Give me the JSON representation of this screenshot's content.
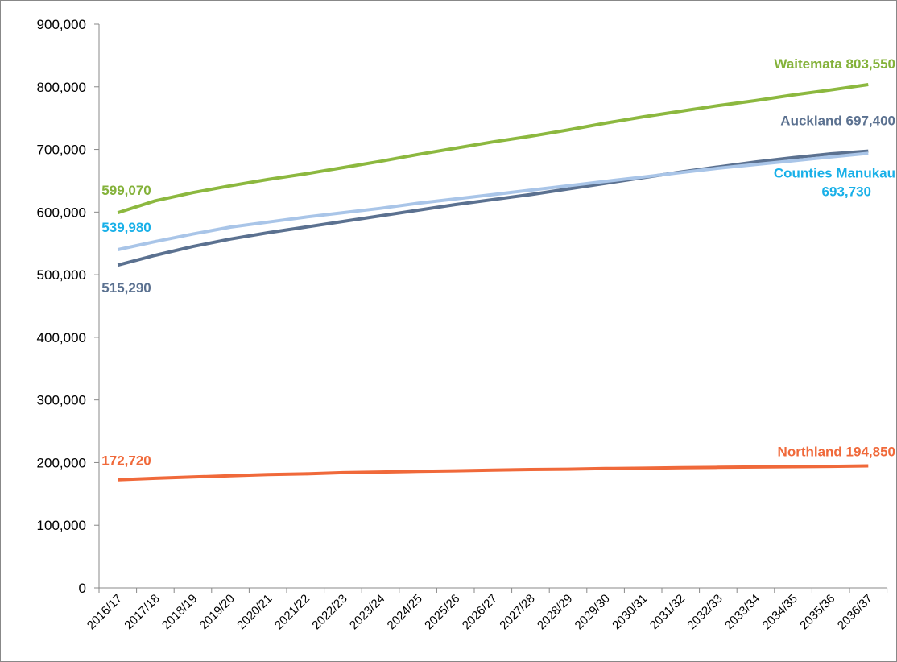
{
  "chart_data": {
    "type": "line",
    "categories": [
      "2016/17",
      "2017/18",
      "2018/19",
      "2019/20",
      "2020/21",
      "2021/22",
      "2022/23",
      "2023/24",
      "2024/25",
      "2025/26",
      "2026/27",
      "2027/28",
      "2028/29",
      "2029/30",
      "2030/31",
      "2031/32",
      "2032/33",
      "2033/34",
      "2034/35",
      "2035/36",
      "2036/37"
    ],
    "ylim": [
      0,
      900000
    ],
    "yticks": [
      0,
      {
        "value": 100000,
        "label": "100,000"
      },
      {
        "value": 200000,
        "label": "200,000"
      },
      {
        "value": 300000,
        "label": "300,000"
      },
      {
        "value": 400000,
        "label": "400,000"
      },
      {
        "value": 500000,
        "label": "500,000"
      },
      {
        "value": 600000,
        "label": "600,000"
      },
      {
        "value": 700000,
        "label": "700,000"
      },
      {
        "value": 800000,
        "label": "800,000"
      },
      {
        "value": 900000,
        "label": "900,000"
      }
    ],
    "grid": false,
    "series": [
      {
        "name": "Waitemata",
        "color": "#8cb83f",
        "label_color": "#84b23a",
        "values": [
          599070,
          618000,
          631000,
          642000,
          652000,
          661000,
          671000,
          681000,
          692000,
          702000,
          712000,
          721000,
          731000,
          742000,
          752000,
          761000,
          770000,
          778000,
          787000,
          795000,
          803550
        ],
        "value_labels": [
          "599,070",
          null,
          null,
          null,
          null,
          null,
          null,
          null,
          null,
          null,
          null,
          null,
          null,
          null,
          null,
          null,
          null,
          null,
          null,
          null,
          "Waitemata 803,550"
        ]
      },
      {
        "name": "Auckland",
        "color": "#5b7190",
        "label_color": "#5b7190",
        "values": [
          515290,
          531000,
          545000,
          557000,
          567000,
          576000,
          585000,
          594000,
          603000,
          612000,
          620000,
          628000,
          637000,
          646000,
          655000,
          664000,
          672000,
          680000,
          687000,
          693000,
          697400
        ],
        "value_labels": [
          "515,290",
          null,
          null,
          null,
          null,
          null,
          null,
          null,
          null,
          null,
          null,
          null,
          null,
          null,
          null,
          null,
          null,
          null,
          null,
          null,
          "Auckland 697,400"
        ]
      },
      {
        "name": "Counties Manukau",
        "color": "#a9c5e8",
        "label_color": "#19b0e8",
        "values": [
          539980,
          553000,
          565000,
          576000,
          584000,
          592000,
          599000,
          606000,
          614000,
          621000,
          628000,
          635000,
          642000,
          649000,
          656000,
          663000,
          670000,
          676000,
          682000,
          688000,
          693730
        ],
        "value_labels": [
          "539,980",
          null,
          null,
          null,
          null,
          null,
          null,
          null,
          null,
          null,
          null,
          null,
          null,
          null,
          null,
          null,
          null,
          null,
          null,
          null,
          "Counties Manukau 693,730"
        ]
      },
      {
        "name": "Northland",
        "color": "#f0693a",
        "label_color": "#f0693a",
        "values": [
          172720,
          175000,
          177000,
          179000,
          181000,
          182000,
          184000,
          185000,
          186000,
          187000,
          188000,
          189000,
          189500,
          190500,
          191000,
          192000,
          192500,
          193000,
          193500,
          194000,
          194850
        ],
        "value_labels": [
          "172,720",
          null,
          null,
          null,
          null,
          null,
          null,
          null,
          null,
          null,
          null,
          null,
          null,
          null,
          null,
          null,
          null,
          null,
          null,
          null,
          "Northland 194,850"
        ]
      }
    ]
  }
}
